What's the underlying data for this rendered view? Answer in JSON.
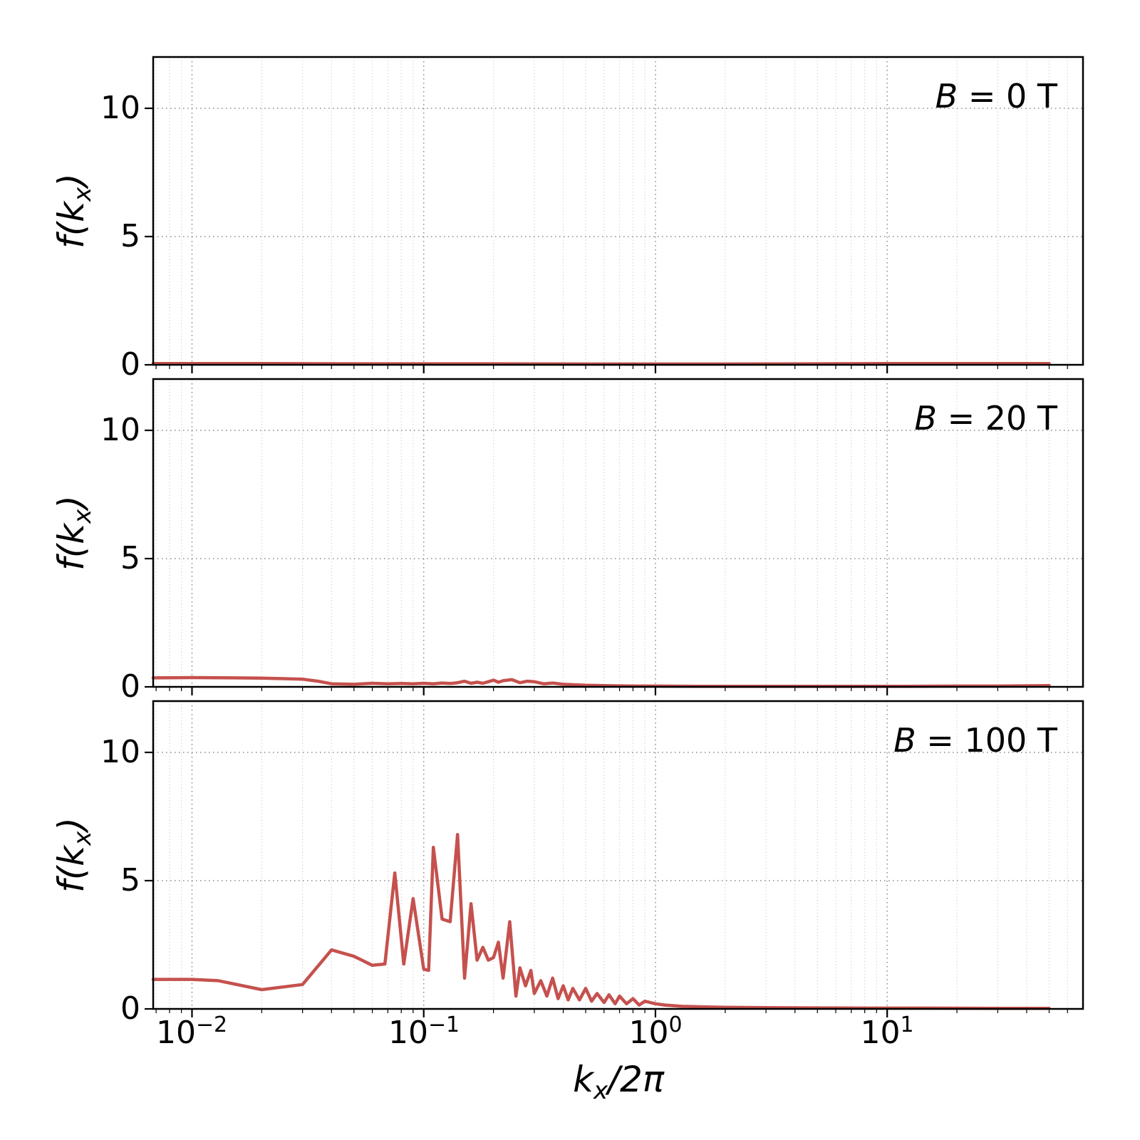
{
  "figure": {
    "line_color": "#c5514e",
    "grid_major_color": "#8a8a8a",
    "grid_minor_color": "#d8d8d8",
    "xlabel": {
      "main": "k",
      "sub": "x",
      "close": "/2π"
    },
    "ylabel": {
      "main": "f(k",
      "sub": "x",
      "close": ")"
    }
  },
  "axes": {
    "yticks": [
      "10",
      "5",
      "0"
    ],
    "xticks": [
      {
        "base": "10",
        "exp": "−2"
      },
      {
        "base": "10",
        "exp": "−1"
      },
      {
        "base": "10",
        "exp": "0"
      },
      {
        "base": "10",
        "exp": "1"
      }
    ]
  },
  "chart_data": [
    {
      "type": "line",
      "xscale": "log",
      "xlabel": "k_x/2pi",
      "ylabel": "f(k_x)",
      "label": "B = 0 T",
      "annotation": {
        "symbol": "B",
        "rest": " = 0 T"
      },
      "xlim": [
        0.0068,
        70
      ],
      "ylim": [
        0,
        12
      ],
      "yticks": [
        0,
        5,
        10
      ],
      "ygrid": [
        5,
        10
      ],
      "x": [
        0.0068,
        0.01,
        0.02,
        0.05,
        0.1,
        0.2,
        0.5,
        1,
        2,
        5,
        10,
        20,
        50
      ],
      "y": [
        0.05,
        0.05,
        0.05,
        0.04,
        0.04,
        0.04,
        0.03,
        0.03,
        0.03,
        0.04,
        0.05,
        0.05,
        0.05
      ]
    },
    {
      "type": "line",
      "xscale": "log",
      "xlabel": "k_x/2pi",
      "ylabel": "f(k_x)",
      "label": "B = 20 T",
      "annotation": {
        "symbol": "B",
        "rest": " = 20 T"
      },
      "xlim": [
        0.0068,
        70
      ],
      "ylim": [
        0,
        12
      ],
      "yticks": [
        0,
        5,
        10
      ],
      "ygrid": [
        5,
        10
      ],
      "x": [
        0.0068,
        0.01,
        0.015,
        0.02,
        0.025,
        0.03,
        0.035,
        0.04,
        0.05,
        0.06,
        0.07,
        0.08,
        0.09,
        0.1,
        0.11,
        0.12,
        0.13,
        0.14,
        0.15,
        0.16,
        0.17,
        0.18,
        0.19,
        0.2,
        0.21,
        0.22,
        0.24,
        0.26,
        0.28,
        0.3,
        0.33,
        0.36,
        0.4,
        0.45,
        0.5,
        0.6,
        0.7,
        0.85,
        1,
        1.5,
        2,
        3,
        5,
        8,
        12,
        20,
        30,
        50
      ],
      "y": [
        0.35,
        0.36,
        0.35,
        0.34,
        0.32,
        0.3,
        0.22,
        0.12,
        0.1,
        0.14,
        0.12,
        0.13,
        0.12,
        0.14,
        0.12,
        0.15,
        0.13,
        0.16,
        0.22,
        0.14,
        0.18,
        0.14,
        0.2,
        0.26,
        0.18,
        0.24,
        0.28,
        0.16,
        0.22,
        0.2,
        0.12,
        0.15,
        0.1,
        0.08,
        0.06,
        0.05,
        0.04,
        0.03,
        0.03,
        0.02,
        0.02,
        0.02,
        0.02,
        0.02,
        0.02,
        0.03,
        0.03,
        0.05
      ]
    },
    {
      "type": "line",
      "xscale": "log",
      "xlabel": "k_x/2pi",
      "ylabel": "f(k_x)",
      "label": "B = 100 T",
      "annotation": {
        "symbol": "B",
        "rest": " = 100 T"
      },
      "xlim": [
        0.0068,
        70
      ],
      "ylim": [
        0,
        12
      ],
      "yticks": [
        0,
        5,
        10
      ],
      "ygrid": [
        5,
        10
      ],
      "x": [
        0.0068,
        0.01,
        0.013,
        0.02,
        0.03,
        0.04,
        0.05,
        0.06,
        0.068,
        0.075,
        0.082,
        0.09,
        0.1,
        0.105,
        0.11,
        0.12,
        0.13,
        0.14,
        0.15,
        0.16,
        0.17,
        0.18,
        0.19,
        0.2,
        0.21,
        0.22,
        0.235,
        0.25,
        0.26,
        0.275,
        0.29,
        0.3,
        0.32,
        0.34,
        0.36,
        0.38,
        0.4,
        0.42,
        0.44,
        0.47,
        0.5,
        0.53,
        0.56,
        0.6,
        0.63,
        0.67,
        0.7,
        0.75,
        0.8,
        0.85,
        0.9,
        1,
        1.1,
        1.3,
        1.6,
        2,
        3,
        5,
        8,
        15,
        30,
        50
      ],
      "y": [
        1.15,
        1.15,
        1.1,
        0.75,
        0.95,
        2.3,
        2.05,
        1.7,
        1.75,
        5.3,
        1.75,
        4.3,
        1.55,
        1.5,
        6.3,
        3.5,
        3.4,
        6.8,
        1.2,
        4.1,
        1.9,
        2.4,
        1.9,
        2.0,
        2.6,
        1.2,
        3.4,
        0.5,
        1.6,
        0.9,
        1.5,
        0.6,
        1.1,
        0.5,
        1.2,
        0.4,
        0.9,
        0.35,
        0.8,
        0.35,
        0.8,
        0.3,
        0.6,
        0.25,
        0.55,
        0.2,
        0.5,
        0.2,
        0.4,
        0.15,
        0.3,
        0.2,
        0.15,
        0.1,
        0.08,
        0.06,
        0.05,
        0.04,
        0.03,
        0.03,
        0.02,
        0.02
      ]
    }
  ]
}
